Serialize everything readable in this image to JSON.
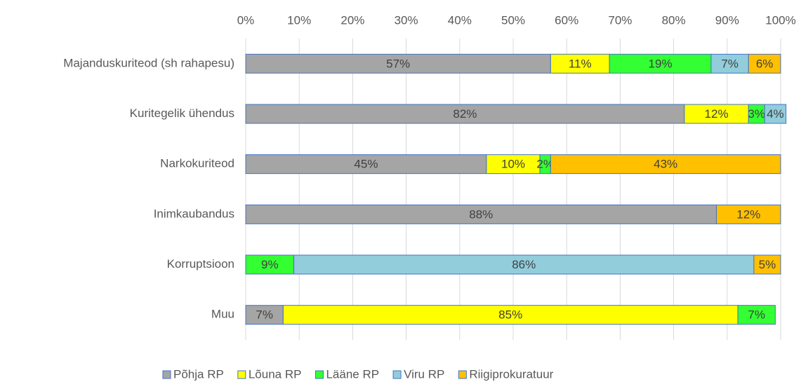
{
  "chart_data": {
    "type": "stacked_bar_horizontal",
    "categories": [
      "Majanduskuriteod (sh rahapesu)",
      "Kuritegelik ühendus",
      "Narkokuriteod",
      "Inimkaubandus",
      "Korruptsioon",
      "Muu"
    ],
    "series": [
      {
        "name": "Põhja RP",
        "color": "#a5a5a5",
        "values": [
          57,
          82,
          45,
          88,
          null,
          7
        ],
        "value_labels": [
          "57%",
          "82%",
          "45%",
          "88%",
          null,
          "7%"
        ]
      },
      {
        "name": "Lõuna RP",
        "color": "#ffff00",
        "values": [
          11,
          12,
          10,
          null,
          null,
          85
        ],
        "value_labels": [
          "11%",
          "12%",
          "10%",
          null,
          null,
          "85%"
        ]
      },
      {
        "name": "Lääne RP",
        "color": "#33ff33",
        "values": [
          19,
          3,
          2,
          null,
          9,
          7
        ],
        "value_labels": [
          "19%",
          "3%",
          "2%",
          null,
          "9%",
          "7%"
        ]
      },
      {
        "name": "Viru RP",
        "color": "#92cddc",
        "values": [
          7,
          4,
          null,
          null,
          86,
          null
        ],
        "value_labels": [
          "7%",
          "4%",
          null,
          null,
          "86%",
          null
        ]
      },
      {
        "name": "Riigiprokuratuur",
        "color": "#ffc000",
        "values": [
          6,
          null,
          43,
          12,
          5,
          null
        ],
        "value_labels": [
          "6%",
          null,
          "43%",
          "12%",
          "5%",
          null
        ]
      }
    ],
    "xlim": [
      0,
      100
    ],
    "xticks": [
      {
        "value": 0,
        "label": "0%"
      },
      {
        "value": 10,
        "label": "10%"
      },
      {
        "value": 20,
        "label": "20%"
      },
      {
        "value": 30,
        "label": "30%"
      },
      {
        "value": 40,
        "label": "40%"
      },
      {
        "value": 50,
        "label": "50%"
      },
      {
        "value": 60,
        "label": "60%"
      },
      {
        "value": 70,
        "label": "70%"
      },
      {
        "value": 80,
        "label": "80%"
      },
      {
        "value": 90,
        "label": "90%"
      },
      {
        "value": 100,
        "label": "100%"
      }
    ],
    "grid": true,
    "legend": "bottom"
  }
}
